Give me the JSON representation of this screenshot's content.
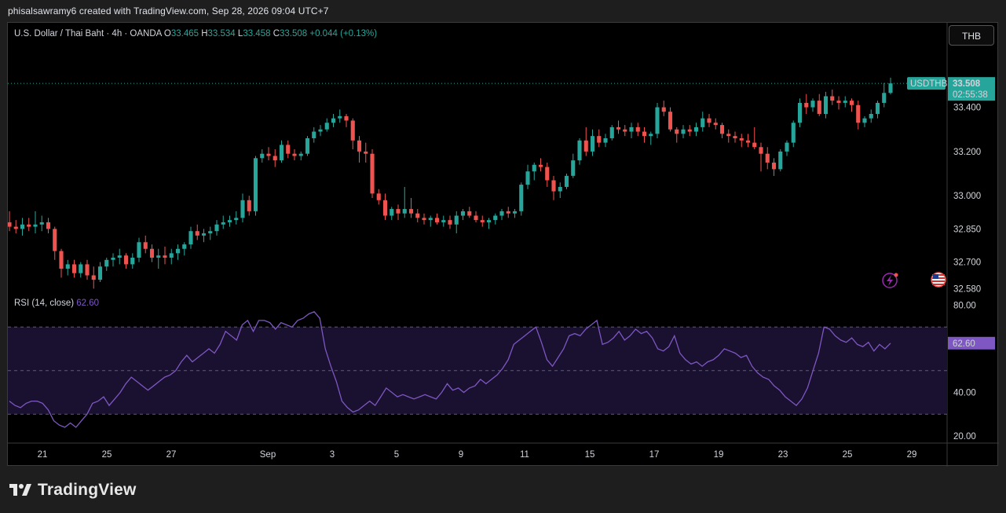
{
  "credit": "phisalsawramy6 created with TradingView.com, Sep 28, 2026 09:04 UTC+7",
  "brand": {
    "name": "TradingView",
    "icon": "tradingview-logo-icon"
  },
  "currency_button": "THB",
  "colors": {
    "up": "#26a69a",
    "down": "#ef5350",
    "rsi_line": "#7e57c2",
    "rsi_band": "#1a1030",
    "symbol_tag": "#26a69a"
  },
  "legend": {
    "symbol": "U.S. Dollar / Thai Baht · 4h · OANDA",
    "open_label": "O",
    "open": "33.465",
    "high_label": "H",
    "high": "33.534",
    "low_label": "L",
    "low": "33.458",
    "close_label": "C",
    "close": "33.508",
    "change": "+0.044 (+0.13%)"
  },
  "price_tag": {
    "symbol": "USDTHB",
    "price": "33.508",
    "countdown": "02:55:38"
  },
  "rsi_legend": {
    "label": "RSI (14, close)",
    "value": "62.60"
  },
  "rsi_tag": "62.60",
  "icons": {
    "alert": "lightning-alert-icon",
    "flag": "us-flag-icon"
  },
  "chart_data": [
    {
      "type": "candlestick",
      "title": "U.S. Dollar / Thai Baht · 4h · OANDA",
      "x_ticks": [
        "21",
        "25",
        "27",
        "Sep",
        "3",
        "5",
        "9",
        "11",
        "15",
        "17",
        "19",
        "23",
        "25",
        "29"
      ],
      "y_ticks": [
        "33.400",
        "33.200",
        "33.000",
        "32.850",
        "32.700",
        "32.580"
      ],
      "last_price": 33.508,
      "ohlc": [
        [
          32.88,
          32.93,
          32.84,
          32.86
        ],
        [
          32.86,
          32.89,
          32.83,
          32.85
        ],
        [
          32.85,
          32.9,
          32.82,
          32.87
        ],
        [
          32.87,
          32.9,
          32.84,
          32.86
        ],
        [
          32.86,
          32.93,
          32.83,
          32.87
        ],
        [
          32.87,
          32.91,
          32.84,
          32.88
        ],
        [
          32.88,
          32.9,
          32.83,
          32.85
        ],
        [
          32.85,
          32.86,
          32.71,
          32.75
        ],
        [
          32.75,
          32.76,
          32.63,
          32.67
        ],
        [
          32.67,
          32.71,
          32.64,
          32.69
        ],
        [
          32.69,
          32.71,
          32.63,
          32.65
        ],
        [
          32.65,
          32.7,
          32.63,
          32.69
        ],
        [
          32.69,
          32.71,
          32.62,
          32.64
        ],
        [
          32.64,
          32.68,
          32.58,
          32.62
        ],
        [
          32.62,
          32.7,
          32.61,
          32.68
        ],
        [
          32.68,
          32.72,
          32.66,
          32.71
        ],
        [
          32.71,
          32.74,
          32.68,
          32.72
        ],
        [
          32.72,
          32.76,
          32.69,
          32.73
        ],
        [
          32.73,
          32.74,
          32.67,
          32.69
        ],
        [
          32.69,
          32.74,
          32.67,
          32.72
        ],
        [
          32.72,
          32.81,
          32.7,
          32.79
        ],
        [
          32.79,
          32.82,
          32.74,
          32.76
        ],
        [
          32.76,
          32.78,
          32.7,
          32.72
        ],
        [
          32.72,
          32.76,
          32.67,
          32.73
        ],
        [
          32.73,
          32.77,
          32.69,
          32.72
        ],
        [
          32.72,
          32.76,
          32.69,
          32.74
        ],
        [
          32.74,
          32.78,
          32.71,
          32.76
        ],
        [
          32.76,
          32.79,
          32.73,
          32.78
        ],
        [
          32.78,
          32.86,
          32.76,
          32.84
        ],
        [
          32.84,
          32.87,
          32.8,
          32.82
        ],
        [
          32.82,
          32.85,
          32.79,
          32.83
        ],
        [
          32.83,
          32.86,
          32.8,
          32.84
        ],
        [
          32.84,
          32.89,
          32.82,
          32.87
        ],
        [
          32.87,
          32.91,
          32.85,
          32.88
        ],
        [
          32.88,
          32.91,
          32.86,
          32.89
        ],
        [
          32.89,
          32.93,
          32.87,
          32.9
        ],
        [
          32.9,
          33.01,
          32.88,
          32.98
        ],
        [
          32.98,
          33.0,
          32.91,
          32.93
        ],
        [
          32.93,
          33.18,
          32.91,
          33.17
        ],
        [
          33.17,
          33.21,
          33.15,
          33.19
        ],
        [
          33.19,
          33.22,
          33.16,
          33.18
        ],
        [
          33.18,
          33.21,
          33.13,
          33.16
        ],
        [
          33.16,
          33.25,
          33.15,
          33.23
        ],
        [
          33.23,
          33.25,
          33.17,
          33.19
        ],
        [
          33.19,
          33.21,
          33.16,
          33.18
        ],
        [
          33.18,
          33.2,
          33.16,
          33.19
        ],
        [
          33.19,
          33.27,
          33.18,
          33.26
        ],
        [
          33.26,
          33.31,
          33.24,
          33.29
        ],
        [
          33.29,
          33.32,
          33.27,
          33.3
        ],
        [
          33.3,
          33.35,
          33.29,
          33.33
        ],
        [
          33.33,
          33.37,
          33.31,
          33.35
        ],
        [
          33.35,
          33.39,
          33.33,
          33.36
        ],
        [
          33.36,
          33.37,
          33.31,
          33.34
        ],
        [
          33.34,
          33.35,
          33.21,
          33.25
        ],
        [
          33.25,
          33.27,
          33.15,
          33.2
        ],
        [
          33.2,
          33.24,
          33.15,
          33.19
        ],
        [
          33.19,
          33.21,
          32.99,
          33.01
        ],
        [
          33.01,
          33.03,
          32.96,
          32.98
        ],
        [
          32.98,
          33.01,
          32.89,
          32.91
        ],
        [
          32.91,
          32.95,
          32.89,
          32.94
        ],
        [
          32.94,
          32.96,
          32.89,
          32.92
        ],
        [
          32.92,
          33.04,
          32.9,
          32.94
        ],
        [
          32.94,
          32.99,
          32.9,
          32.92
        ],
        [
          32.92,
          32.94,
          32.88,
          32.9
        ],
        [
          32.9,
          32.92,
          32.87,
          32.89
        ],
        [
          32.89,
          32.91,
          32.86,
          32.9
        ],
        [
          32.9,
          32.92,
          32.87,
          32.88
        ],
        [
          32.88,
          32.91,
          32.86,
          32.89
        ],
        [
          32.89,
          32.91,
          32.85,
          32.87
        ],
        [
          32.87,
          32.93,
          32.83,
          32.91
        ],
        [
          32.91,
          32.94,
          32.89,
          32.93
        ],
        [
          32.93,
          32.95,
          32.9,
          32.91
        ],
        [
          32.91,
          32.93,
          32.88,
          32.89
        ],
        [
          32.89,
          32.91,
          32.86,
          32.88
        ],
        [
          32.88,
          32.9,
          32.85,
          32.89
        ],
        [
          32.89,
          32.92,
          32.87,
          32.91
        ],
        [
          32.91,
          32.94,
          32.89,
          32.93
        ],
        [
          32.93,
          32.95,
          32.9,
          32.92
        ],
        [
          32.92,
          32.94,
          32.9,
          32.93
        ],
        [
          32.93,
          33.06,
          32.91,
          33.05
        ],
        [
          33.05,
          33.14,
          33.03,
          33.11
        ],
        [
          33.11,
          33.15,
          33.07,
          33.14
        ],
        [
          33.14,
          33.17,
          33.11,
          33.13
        ],
        [
          33.13,
          33.15,
          33.04,
          33.07
        ],
        [
          33.07,
          33.09,
          32.98,
          33.02
        ],
        [
          33.02,
          33.06,
          32.99,
          33.04
        ],
        [
          33.04,
          33.1,
          33.03,
          33.09
        ],
        [
          33.09,
          33.19,
          33.08,
          33.16
        ],
        [
          33.16,
          33.26,
          33.14,
          33.25
        ],
        [
          33.25,
          33.31,
          33.18,
          33.2
        ],
        [
          33.2,
          33.3,
          33.18,
          33.27
        ],
        [
          33.27,
          33.3,
          33.22,
          33.24
        ],
        [
          33.24,
          33.28,
          33.22,
          33.26
        ],
        [
          33.26,
          33.32,
          33.25,
          33.31
        ],
        [
          33.31,
          33.34,
          33.28,
          33.3
        ],
        [
          33.3,
          33.32,
          33.27,
          33.29
        ],
        [
          33.29,
          33.33,
          33.26,
          33.31
        ],
        [
          33.31,
          33.33,
          33.27,
          33.29
        ],
        [
          33.29,
          33.31,
          33.24,
          33.27
        ],
        [
          33.27,
          33.29,
          33.23,
          33.28
        ],
        [
          33.28,
          33.42,
          33.26,
          33.4
        ],
        [
          33.4,
          33.43,
          33.36,
          33.38
        ],
        [
          33.38,
          33.4,
          33.29,
          33.3
        ],
        [
          33.3,
          33.31,
          33.24,
          33.28
        ],
        [
          33.28,
          33.32,
          33.26,
          33.3
        ],
        [
          33.3,
          33.32,
          33.27,
          33.29
        ],
        [
          33.29,
          33.33,
          33.27,
          33.31
        ],
        [
          33.31,
          33.38,
          33.29,
          33.35
        ],
        [
          33.35,
          33.37,
          33.31,
          33.33
        ],
        [
          33.33,
          33.35,
          33.3,
          33.32
        ],
        [
          33.32,
          33.33,
          33.26,
          33.28
        ],
        [
          33.28,
          33.3,
          33.24,
          33.27
        ],
        [
          33.27,
          33.29,
          33.24,
          33.26
        ],
        [
          33.26,
          33.28,
          33.22,
          33.25
        ],
        [
          33.25,
          33.28,
          33.22,
          33.24
        ],
        [
          33.24,
          33.31,
          33.21,
          33.22
        ],
        [
          33.22,
          33.24,
          33.11,
          33.19
        ],
        [
          33.19,
          33.22,
          33.12,
          33.15
        ],
        [
          33.15,
          33.17,
          33.09,
          33.12
        ],
        [
          33.12,
          33.21,
          33.11,
          33.2
        ],
        [
          33.2,
          33.25,
          33.18,
          33.24
        ],
        [
          33.24,
          33.34,
          33.22,
          33.33
        ],
        [
          33.33,
          33.44,
          33.31,
          33.42
        ],
        [
          33.42,
          33.46,
          33.37,
          33.4
        ],
        [
          33.4,
          33.44,
          33.38,
          33.43
        ],
        [
          33.43,
          33.46,
          33.36,
          33.37
        ],
        [
          33.37,
          33.47,
          33.35,
          33.45
        ],
        [
          33.45,
          33.48,
          33.41,
          33.43
        ],
        [
          33.43,
          33.45,
          33.39,
          33.42
        ],
        [
          33.42,
          33.45,
          33.4,
          33.43
        ],
        [
          33.43,
          33.44,
          33.38,
          33.41
        ],
        [
          33.41,
          33.43,
          33.3,
          33.33
        ],
        [
          33.33,
          33.36,
          33.31,
          33.35
        ],
        [
          33.35,
          33.39,
          33.33,
          33.37
        ],
        [
          33.37,
          33.43,
          33.35,
          33.42
        ],
        [
          33.42,
          33.51,
          33.4,
          33.465
        ],
        [
          33.465,
          33.534,
          33.458,
          33.508
        ]
      ]
    },
    {
      "type": "line",
      "title": "RSI (14, close)",
      "y_ticks": [
        "80.00",
        "40.00",
        "20.00"
      ],
      "levels": [
        70,
        50,
        30
      ],
      "last_value": 62.6,
      "values": [
        36,
        34,
        33,
        35,
        36,
        36,
        35,
        32,
        27,
        25,
        24,
        26,
        24,
        27,
        30,
        35,
        36,
        38,
        34,
        37,
        40,
        44,
        47,
        45,
        43,
        41,
        43,
        45,
        47,
        48,
        50,
        54,
        57,
        54,
        56,
        58,
        60,
        58,
        62,
        68,
        66,
        64,
        71,
        73,
        68,
        73,
        73,
        72,
        69,
        72,
        71,
        70,
        73,
        74,
        76,
        77,
        74,
        60,
        52,
        45,
        36,
        33,
        31,
        32,
        34,
        36,
        34,
        38,
        42,
        40,
        38,
        39,
        38,
        37,
        38,
        39,
        38,
        37,
        40,
        44,
        41,
        42,
        40,
        42,
        43,
        46,
        44,
        46,
        48,
        51,
        55,
        62,
        64,
        66,
        68,
        70,
        63,
        55,
        52,
        56,
        60,
        66,
        67,
        66,
        69,
        71,
        73,
        62,
        63,
        65,
        68,
        64,
        66,
        69,
        67,
        68,
        65,
        60,
        59,
        61,
        66,
        58,
        55,
        53,
        54,
        52,
        54,
        55,
        57,
        60,
        59,
        58,
        56,
        57,
        52,
        49,
        47,
        46,
        43,
        41,
        38,
        36,
        34,
        37,
        42,
        50,
        58,
        70,
        69,
        66,
        64,
        63,
        65,
        62,
        61,
        63,
        59,
        62,
        60,
        62.6
      ]
    }
  ]
}
